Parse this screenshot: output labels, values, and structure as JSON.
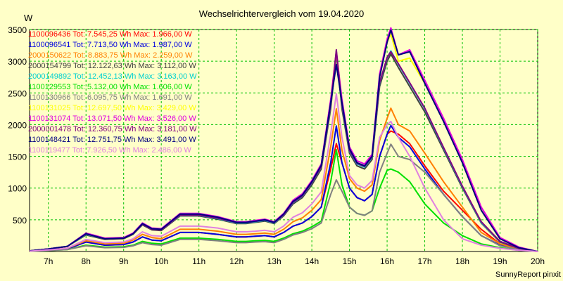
{
  "chart_data": {
    "type": "line",
    "title": "Wechselrichtervergleich vom 19.04.2020",
    "ylabel": "W",
    "xlabel": "",
    "footer": "SunnyReport pinxit",
    "ylim": [
      0,
      3500
    ],
    "xlim": [
      6.5,
      20.0
    ],
    "grid": true,
    "legend_position": "top-left",
    "colors": {
      "background": "#ffffc8",
      "grid": "#00c000",
      "axis": "#000000"
    },
    "y_ticks": [
      {
        "value": 500,
        "label": "500"
      },
      {
        "value": 1000,
        "label": "1000"
      },
      {
        "value": 1500,
        "label": "1500"
      },
      {
        "value": 2000,
        "label": "2000"
      },
      {
        "value": 2500,
        "label": "2500"
      },
      {
        "value": 3000,
        "label": "3000"
      },
      {
        "value": 3500,
        "label": "3500"
      }
    ],
    "x_ticks": [
      {
        "value": 7,
        "label": "7h"
      },
      {
        "value": 8,
        "label": "8h"
      },
      {
        "value": 9,
        "label": "9h"
      },
      {
        "value": 10,
        "label": "10h"
      },
      {
        "value": 11,
        "label": "11h"
      },
      {
        "value": 12,
        "label": "12h"
      },
      {
        "value": 13,
        "label": "13h"
      },
      {
        "value": 14,
        "label": "14h"
      },
      {
        "value": 15,
        "label": "15h"
      },
      {
        "value": 16,
        "label": "16h"
      },
      {
        "value": 17,
        "label": "17h"
      },
      {
        "value": 18,
        "label": "18h"
      },
      {
        "value": 19,
        "label": "19h"
      },
      {
        "value": 20,
        "label": "20h"
      }
    ],
    "x": [
      6.5,
      7.0,
      7.5,
      8.0,
      8.5,
      9.0,
      9.25,
      9.5,
      9.75,
      10.0,
      10.5,
      10.75,
      11.0,
      11.5,
      12.0,
      12.25,
      12.5,
      12.75,
      13.0,
      13.25,
      13.5,
      13.75,
      14.0,
      14.25,
      14.5,
      14.65,
      14.8,
      15.0,
      15.2,
      15.4,
      15.6,
      15.8,
      16.0,
      16.1,
      16.3,
      16.6,
      17.0,
      17.5,
      18.0,
      18.5,
      19.0,
      19.5,
      20.0
    ],
    "series": [
      {
        "legend": "1100096436 Tot: 7.545,25 Wh Max: 1.966,00 W",
        "color": "#ff0000",
        "values": [
          5,
          20,
          40,
          150,
          100,
          110,
          150,
          230,
          180,
          170,
          300,
          300,
          300,
          270,
          230,
          230,
          240,
          250,
          230,
          300,
          400,
          450,
          550,
          700,
          1300,
          1700,
          1400,
          1000,
          850,
          800,
          900,
          1500,
          1850,
          1900,
          1850,
          1700,
          1350,
          950,
          650,
          350,
          120,
          30,
          0
        ]
      },
      {
        "legend": "1100096541 Tot: 7.713,50 Wh Max: 1.987,00 W",
        "color": "#0000e0",
        "values": [
          5,
          20,
          40,
          150,
          100,
          110,
          150,
          230,
          180,
          170,
          300,
          300,
          300,
          270,
          230,
          230,
          240,
          250,
          230,
          300,
          400,
          450,
          550,
          700,
          1400,
          1980,
          1400,
          1000,
          850,
          800,
          900,
          1500,
          1850,
          1987,
          1800,
          1650,
          1300,
          900,
          550,
          250,
          100,
          30,
          0
        ]
      },
      {
        "legend": "2000150622 Tot: 8.883,75 Wh Max: 2.259,00 W",
        "color": "#ff8000",
        "values": [
          5,
          25,
          50,
          170,
          120,
          130,
          180,
          270,
          220,
          200,
          350,
          350,
          350,
          320,
          270,
          270,
          280,
          290,
          270,
          350,
          470,
          530,
          650,
          820,
          1650,
          2250,
          1600,
          1150,
          1000,
          950,
          1050,
          1750,
          2100,
          2259,
          2000,
          1900,
          1550,
          1100,
          700,
          300,
          120,
          40,
          0
        ]
      },
      {
        "legend": "2000154799 Tot: 12.122,63 Wh Max: 3.112,00 W",
        "color": "#404040",
        "values": [
          10,
          40,
          80,
          260,
          190,
          200,
          270,
          420,
          340,
          330,
          560,
          560,
          560,
          510,
          440,
          440,
          460,
          480,
          440,
          560,
          750,
          850,
          1050,
          1300,
          2250,
          3112,
          2250,
          1550,
          1350,
          1300,
          1450,
          2600,
          3000,
          3112,
          2900,
          2600,
          2200,
          1600,
          1000,
          450,
          150,
          50,
          0
        ]
      },
      {
        "legend": "2000149892 Tot: 12.452,13 Wh Max: 3.163,00 W",
        "color": "#00d0d0",
        "values": [
          10,
          40,
          80,
          270,
          200,
          210,
          280,
          430,
          350,
          340,
          570,
          570,
          570,
          520,
          450,
          450,
          470,
          490,
          450,
          570,
          770,
          870,
          1080,
          1330,
          2300,
          3163,
          2300,
          1580,
          1380,
          1330,
          1480,
          2650,
          3050,
          3163,
          2950,
          2650,
          2250,
          1630,
          1020,
          460,
          160,
          50,
          0
        ]
      },
      {
        "legend": "1100129553 Tot: 5.132,00 Wh Max: 1.606,00 W",
        "color": "#00e000",
        "values": [
          5,
          15,
          30,
          100,
          70,
          75,
          100,
          160,
          130,
          120,
          210,
          210,
          210,
          190,
          160,
          160,
          170,
          175,
          160,
          210,
          280,
          320,
          390,
          480,
          1100,
          1606,
          1050,
          700,
          600,
          570,
          640,
          1000,
          1280,
          1300,
          1250,
          1100,
          750,
          450,
          250,
          120,
          60,
          20,
          0
        ]
      },
      {
        "legend": "1100130966 Tot: 6.095,75 Wh Max: 1.691,00 W",
        "color": "#808080",
        "values": [
          5,
          15,
          30,
          90,
          60,
          65,
          90,
          140,
          110,
          100,
          190,
          190,
          190,
          170,
          140,
          140,
          150,
          155,
          140,
          190,
          260,
          300,
          360,
          450,
          900,
          1130,
          950,
          700,
          600,
          570,
          640,
          1250,
          1550,
          1691,
          1500,
          1450,
          1250,
          900,
          550,
          250,
          90,
          30,
          0
        ]
      },
      {
        "legend": "1100131025 Tot: 12.697,50 Wh Max: 3.429,00 W",
        "color": "#ffff00",
        "values": [
          10,
          40,
          80,
          280,
          200,
          210,
          280,
          440,
          360,
          350,
          590,
          590,
          590,
          540,
          460,
          460,
          480,
          500,
          460,
          590,
          790,
          890,
          1100,
          1360,
          2350,
          3150,
          2350,
          1620,
          1400,
          1350,
          1500,
          2750,
          3300,
          3429,
          3000,
          3050,
          2650,
          2050,
          1400,
          650,
          200,
          60,
          0
        ]
      },
      {
        "legend": "1100131074 Tot: 13.071,50 Wh Max: 3.526,00 W",
        "color": "#e000e0",
        "values": [
          10,
          40,
          80,
          290,
          210,
          220,
          290,
          450,
          370,
          360,
          600,
          600,
          600,
          550,
          470,
          470,
          490,
          510,
          470,
          600,
          810,
          910,
          1120,
          1380,
          2400,
          3150,
          2400,
          1650,
          1430,
          1380,
          1530,
          2800,
          3350,
          3526,
          3100,
          3180,
          2700,
          2100,
          1450,
          700,
          220,
          70,
          0
        ]
      },
      {
        "legend": "2000001478 Tot: 12.360,75 Wh Max: 3.181,00 W",
        "color": "#800080",
        "values": [
          10,
          40,
          80,
          275,
          200,
          210,
          280,
          430,
          350,
          340,
          575,
          575,
          575,
          525,
          455,
          455,
          475,
          495,
          455,
          575,
          775,
          875,
          1085,
          1335,
          2310,
          3181,
          2310,
          1590,
          1390,
          1340,
          1490,
          2660,
          3060,
          3150,
          2960,
          2660,
          2260,
          1640,
          1030,
          470,
          160,
          50,
          0
        ]
      },
      {
        "legend": "1100148421 Tot: 12.751,75 Wh Max: 3.491,00 W",
        "color": "#000080",
        "values": [
          10,
          40,
          80,
          280,
          200,
          210,
          280,
          440,
          360,
          350,
          590,
          590,
          590,
          540,
          460,
          460,
          480,
          500,
          460,
          590,
          790,
          890,
          1100,
          1360,
          2350,
          2950,
          2350,
          1620,
          1400,
          1350,
          1500,
          2750,
          3300,
          3491,
          3100,
          3150,
          2650,
          2050,
          1400,
          650,
          200,
          60,
          0
        ]
      },
      {
        "legend": "1100119477 Tot: 7.926,50 Wh Max: 2.486,00 W",
        "color": "#e080e0",
        "values": [
          5,
          25,
          50,
          190,
          140,
          150,
          200,
          310,
          250,
          240,
          400,
          400,
          400,
          370,
          310,
          310,
          320,
          335,
          310,
          400,
          540,
          610,
          750,
          940,
          1850,
          2486,
          1800,
          1200,
          1050,
          1000,
          1120,
          1800,
          2000,
          2050,
          1800,
          1500,
          1000,
          500,
          200,
          100,
          50,
          20,
          0
        ]
      }
    ]
  }
}
